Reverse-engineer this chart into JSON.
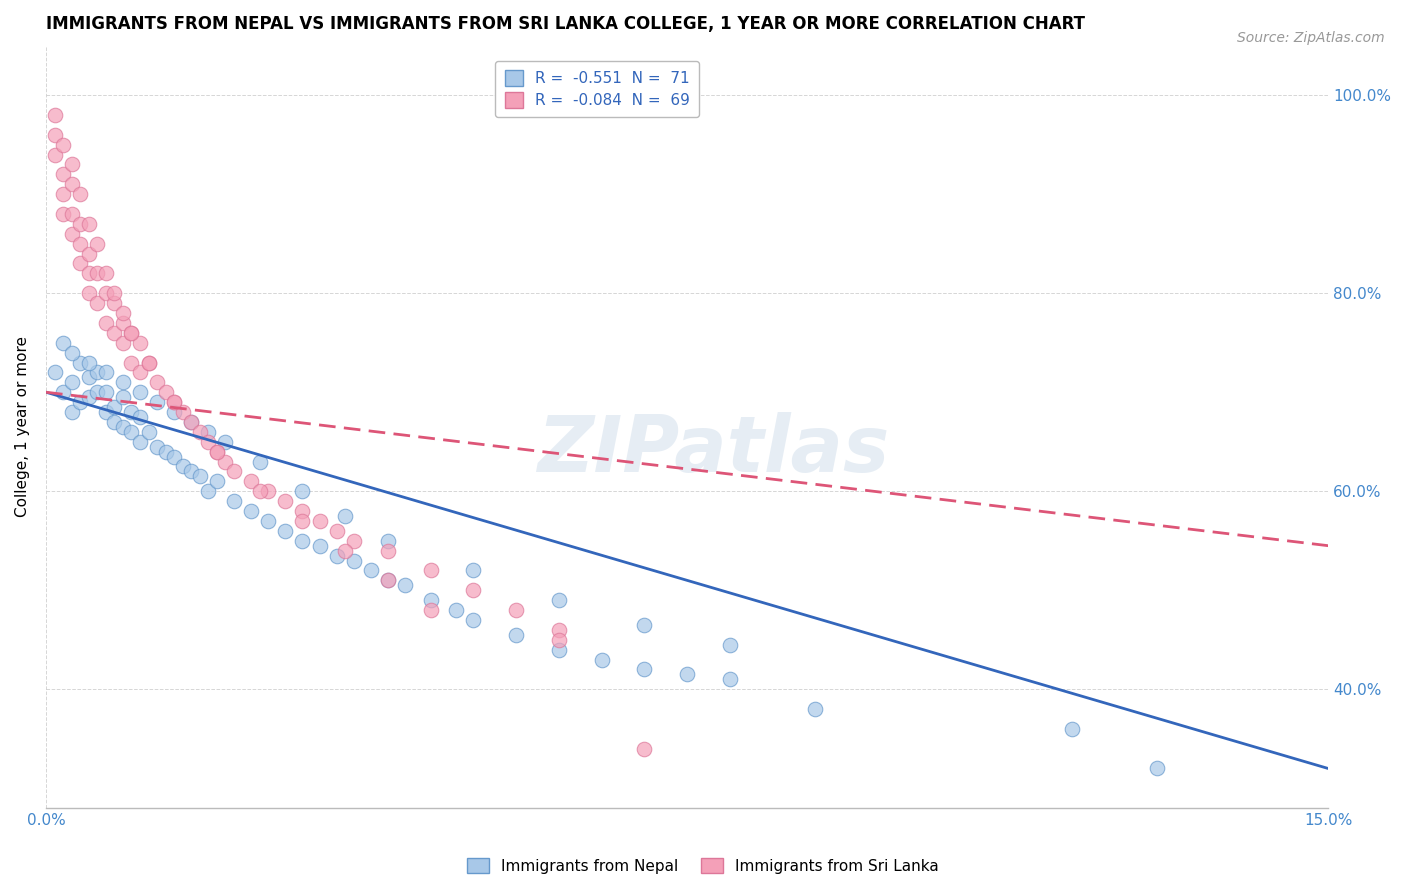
{
  "title": "IMMIGRANTS FROM NEPAL VS IMMIGRANTS FROM SRI LANKA COLLEGE, 1 YEAR OR MORE CORRELATION CHART",
  "source": "Source: ZipAtlas.com",
  "ylabel": "College, 1 year or more",
  "xlim": [
    0.0,
    0.15
  ],
  "ylim": [
    0.28,
    1.05
  ],
  "yticks": [
    0.4,
    0.6,
    0.8,
    1.0
  ],
  "ytick_labels": [
    "40.0%",
    "60.0%",
    "80.0%",
    "100.0%"
  ],
  "xtick_labels": [
    "0.0%",
    "15.0%"
  ],
  "legend_R1": "R = ",
  "legend_V1": "-0.551",
  "legend_N1": "N = ",
  "legend_NV1": "71",
  "legend_R2": "R = ",
  "legend_V2": "-0.084",
  "legend_N2": "N = ",
  "legend_NV2": "69",
  "nepal_color": "#a8c8e8",
  "srilanka_color": "#f4a0b8",
  "nepal_edge_color": "#6699cc",
  "srilanka_edge_color": "#dd7799",
  "nepal_line_color": "#3366bb",
  "srilanka_line_color": "#dd5577",
  "nepal_scatter_x": [
    0.001,
    0.002,
    0.002,
    0.003,
    0.003,
    0.004,
    0.004,
    0.005,
    0.005,
    0.006,
    0.006,
    0.007,
    0.007,
    0.008,
    0.008,
    0.009,
    0.009,
    0.01,
    0.01,
    0.011,
    0.011,
    0.012,
    0.013,
    0.014,
    0.015,
    0.016,
    0.017,
    0.018,
    0.019,
    0.02,
    0.022,
    0.024,
    0.026,
    0.028,
    0.03,
    0.032,
    0.034,
    0.036,
    0.038,
    0.04,
    0.042,
    0.045,
    0.048,
    0.05,
    0.055,
    0.06,
    0.065,
    0.07,
    0.075,
    0.08,
    0.003,
    0.005,
    0.007,
    0.009,
    0.011,
    0.013,
    0.015,
    0.017,
    0.019,
    0.021,
    0.025,
    0.03,
    0.035,
    0.04,
    0.05,
    0.06,
    0.07,
    0.08,
    0.09,
    0.12,
    0.13
  ],
  "nepal_scatter_y": [
    0.72,
    0.7,
    0.75,
    0.68,
    0.71,
    0.73,
    0.69,
    0.715,
    0.695,
    0.7,
    0.72,
    0.68,
    0.7,
    0.685,
    0.67,
    0.695,
    0.665,
    0.68,
    0.66,
    0.675,
    0.65,
    0.66,
    0.645,
    0.64,
    0.635,
    0.625,
    0.62,
    0.615,
    0.6,
    0.61,
    0.59,
    0.58,
    0.57,
    0.56,
    0.55,
    0.545,
    0.535,
    0.53,
    0.52,
    0.51,
    0.505,
    0.49,
    0.48,
    0.47,
    0.455,
    0.44,
    0.43,
    0.42,
    0.415,
    0.41,
    0.74,
    0.73,
    0.72,
    0.71,
    0.7,
    0.69,
    0.68,
    0.67,
    0.66,
    0.65,
    0.63,
    0.6,
    0.575,
    0.55,
    0.52,
    0.49,
    0.465,
    0.445,
    0.38,
    0.36,
    0.32
  ],
  "srilanka_scatter_x": [
    0.001,
    0.001,
    0.002,
    0.002,
    0.002,
    0.003,
    0.003,
    0.003,
    0.004,
    0.004,
    0.004,
    0.005,
    0.005,
    0.005,
    0.006,
    0.006,
    0.007,
    0.007,
    0.008,
    0.008,
    0.009,
    0.009,
    0.01,
    0.01,
    0.011,
    0.011,
    0.012,
    0.013,
    0.014,
    0.015,
    0.016,
    0.017,
    0.018,
    0.019,
    0.02,
    0.021,
    0.022,
    0.024,
    0.026,
    0.028,
    0.03,
    0.032,
    0.034,
    0.036,
    0.04,
    0.045,
    0.05,
    0.055,
    0.06,
    0.001,
    0.002,
    0.003,
    0.004,
    0.005,
    0.006,
    0.007,
    0.008,
    0.009,
    0.01,
    0.012,
    0.015,
    0.02,
    0.025,
    0.03,
    0.035,
    0.04,
    0.045,
    0.06,
    0.07
  ],
  "srilanka_scatter_y": [
    0.96,
    0.94,
    0.92,
    0.9,
    0.88,
    0.91,
    0.88,
    0.86,
    0.87,
    0.85,
    0.83,
    0.84,
    0.82,
    0.8,
    0.82,
    0.79,
    0.8,
    0.77,
    0.79,
    0.76,
    0.77,
    0.75,
    0.76,
    0.73,
    0.75,
    0.72,
    0.73,
    0.71,
    0.7,
    0.69,
    0.68,
    0.67,
    0.66,
    0.65,
    0.64,
    0.63,
    0.62,
    0.61,
    0.6,
    0.59,
    0.58,
    0.57,
    0.56,
    0.55,
    0.54,
    0.52,
    0.5,
    0.48,
    0.46,
    0.98,
    0.95,
    0.93,
    0.9,
    0.87,
    0.85,
    0.82,
    0.8,
    0.78,
    0.76,
    0.73,
    0.69,
    0.64,
    0.6,
    0.57,
    0.54,
    0.51,
    0.48,
    0.45,
    0.34
  ],
  "nepal_trend_x": [
    0.0,
    0.15
  ],
  "nepal_trend_y": [
    0.7,
    0.32
  ],
  "srilanka_trend_x": [
    0.0,
    0.15
  ],
  "srilanka_trend_y": [
    0.7,
    0.545
  ],
  "watermark": "ZIPatlas",
  "bg_color": "#ffffff",
  "grid_color": "#cccccc",
  "tick_color": "#4488cc",
  "title_fontsize": 12,
  "label_fontsize": 11,
  "tick_fontsize": 11,
  "legend_fontsize": 11,
  "source_fontsize": 10
}
